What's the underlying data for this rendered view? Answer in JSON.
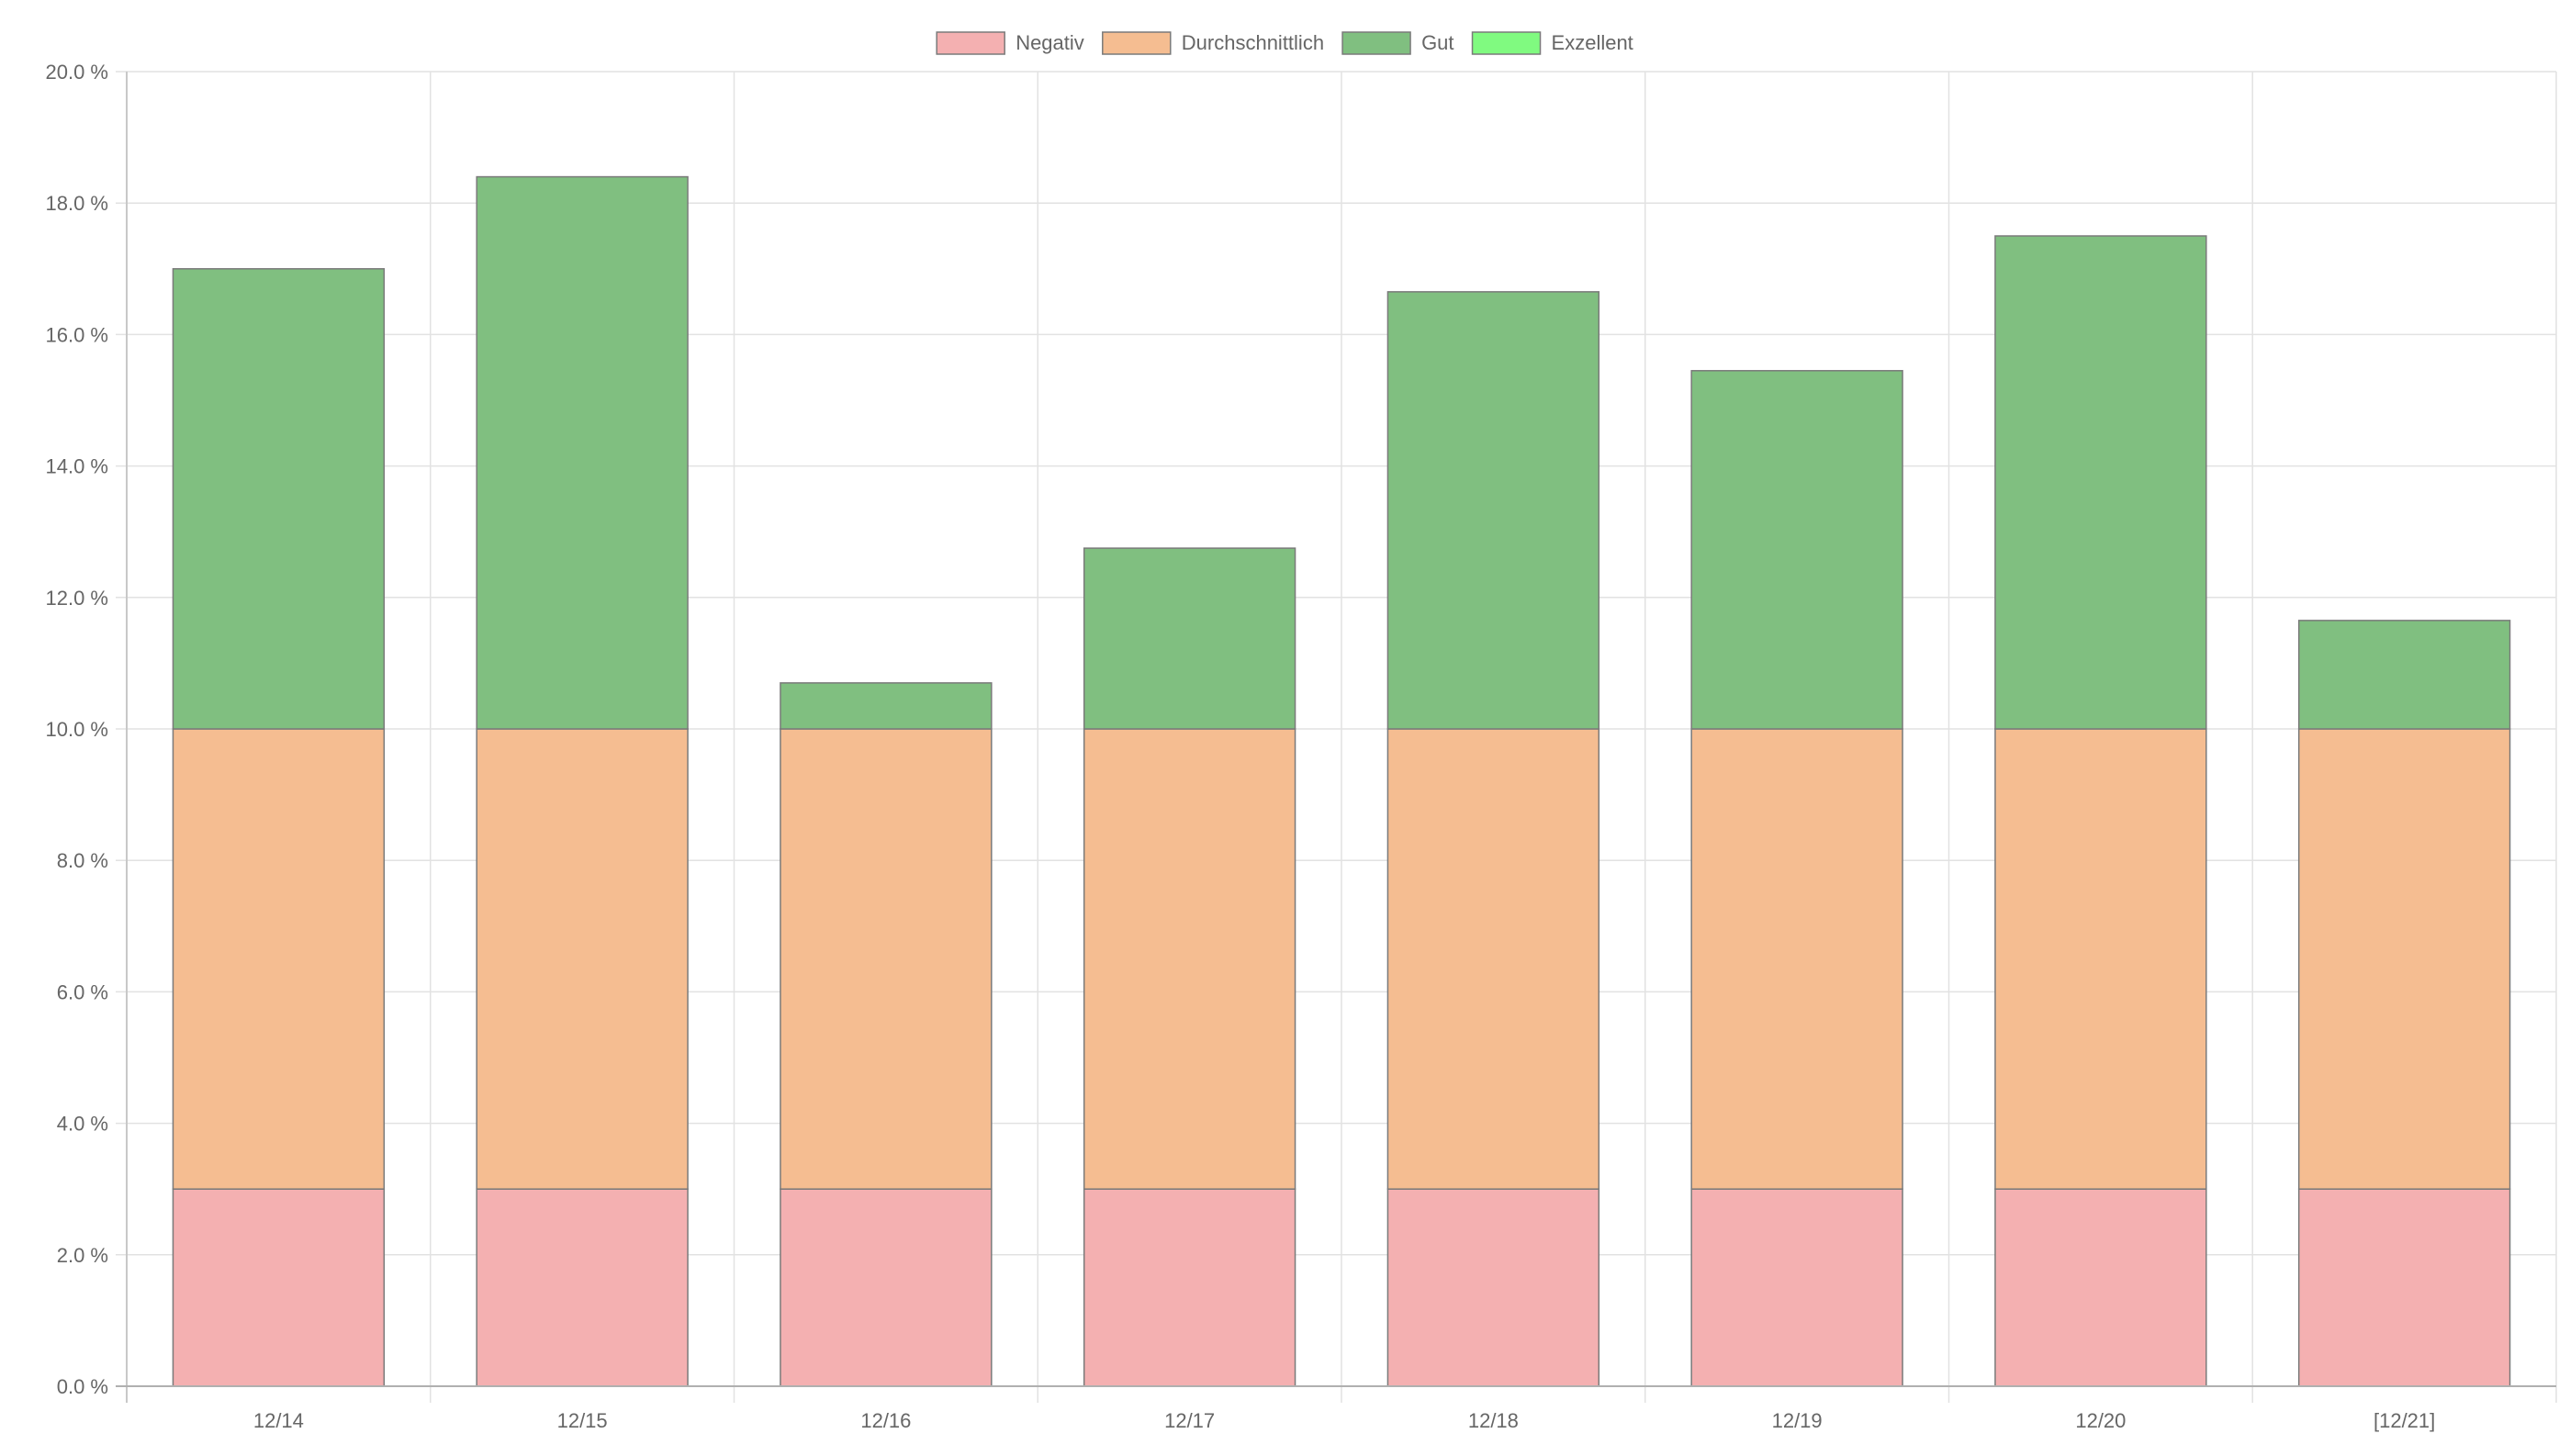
{
  "chart_data": {
    "type": "bar",
    "stacked": true,
    "categories": [
      "12/14",
      "12/15",
      "12/16",
      "12/17",
      "12/18",
      "12/19",
      "12/20",
      "[12/21]"
    ],
    "series": [
      {
        "name": "Negativ",
        "color": "#f4b0b1",
        "values": [
          3.0,
          3.0,
          3.0,
          3.0,
          3.0,
          3.0,
          3.0,
          3.0
        ]
      },
      {
        "name": "Durchschnittlich",
        "color": "#f5bd91",
        "values": [
          7.0,
          7.0,
          7.0,
          7.0,
          7.0,
          7.0,
          7.0,
          7.0
        ]
      },
      {
        "name": "Gut",
        "color": "#80bf80",
        "values": [
          7.0,
          8.4,
          0.7,
          2.75,
          6.65,
          5.45,
          7.5,
          1.65
        ]
      },
      {
        "name": "Exzellent",
        "color": "#80fa80",
        "values": [
          0,
          0,
          0,
          0,
          0,
          0,
          0,
          0
        ]
      }
    ],
    "ylim": [
      0,
      20
    ],
    "yticks": [
      "0.0 %",
      "2.0 %",
      "4.0 %",
      "6.0 %",
      "8.0 %",
      "10.0 %",
      "12.0 %",
      "14.0 %",
      "16.0 %",
      "18.0 %",
      "20.0 %"
    ],
    "grid": true,
    "legend_position": "top-center"
  }
}
